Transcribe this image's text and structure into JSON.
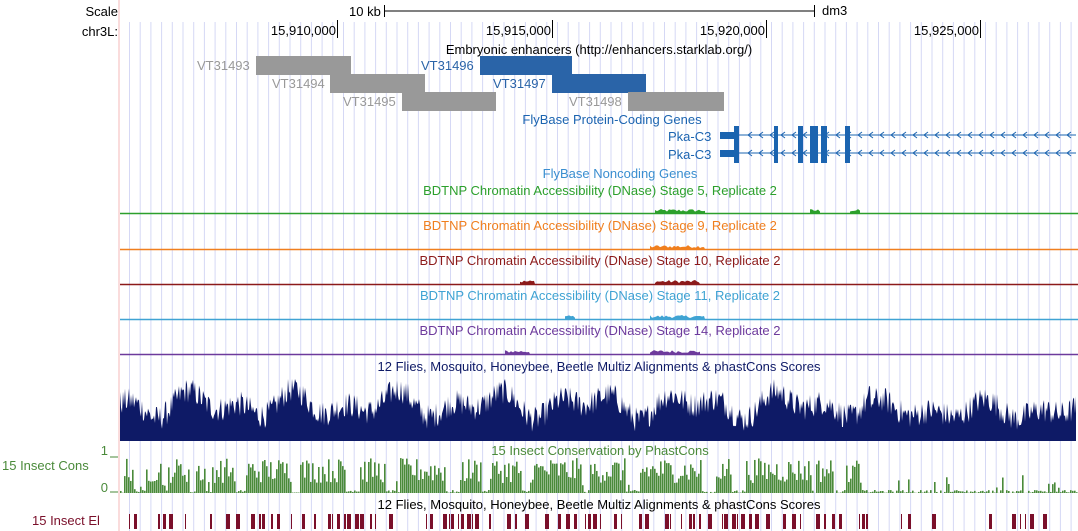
{
  "ruler": {
    "scale_label": "Scale",
    "scale_bar_label": "10 kb",
    "assembly": "dm3",
    "chrom_label": "chr3L:",
    "ticks": [
      "15,910,000",
      "15,915,000",
      "15,920,000",
      "15,925,000"
    ]
  },
  "enhancers": {
    "title": "Embryonic enhancers (http://enhancers.starklab.org/)",
    "features": [
      {
        "name": "VT31493",
        "color": "#999999"
      },
      {
        "name": "VT31494",
        "color": "#999999"
      },
      {
        "name": "VT31495",
        "color": "#999999"
      },
      {
        "name": "VT31496",
        "color": "#2a64a8"
      },
      {
        "name": "VT31497",
        "color": "#2a64a8"
      },
      {
        "name": "VT31498",
        "color": "#999999"
      }
    ]
  },
  "genes": {
    "title": "FlyBase Protein-Coding Genes",
    "color": "#1b64b0",
    "transcripts": [
      "Pka-C3",
      "Pka-C3"
    ]
  },
  "noncoding": {
    "title": "FlyBase Noncoding Genes",
    "color": "#3a8ed0"
  },
  "dnase_tracks": [
    {
      "title": "BDTNP Chromatin Accessibility (DNase) Stage 5, Replicate 2",
      "color": "#2ca02c"
    },
    {
      "title": "BDTNP Chromatin Accessibility (DNase) Stage 9, Replicate 2",
      "color": "#f07f1e"
    },
    {
      "title": "BDTNP Chromatin Accessibility (DNase) Stage 10, Replicate 2",
      "color": "#8c1a1a"
    },
    {
      "title": "BDTNP Chromatin Accessibility (DNase) Stage 11, Replicate 2",
      "color": "#3fa3d3"
    },
    {
      "title": "BDTNP Chromatin Accessibility (DNase) Stage 14, Replicate 2",
      "color": "#6d3a9c"
    }
  ],
  "multiz": {
    "title": "12 Flies, Mosquito, Honeybee, Beetle Multiz Alignments & phastCons Scores",
    "color": "#0e1a66"
  },
  "phastcons": {
    "title": "15 Insect Conservation by PhastCons",
    "side_label": "15 Insect Cons",
    "ymax": "1",
    "ymin": "0",
    "color": "#4a8a3a"
  },
  "elements": {
    "title": "12 Flies, Mosquito, Honeybee, Beetle Multiz Alignments & phastCons Scores",
    "side_label": "15 Insect El",
    "color": "#7a0f2a"
  },
  "colors": {
    "grid": "#d5d8f5",
    "sideline": "#f4b9b9"
  }
}
